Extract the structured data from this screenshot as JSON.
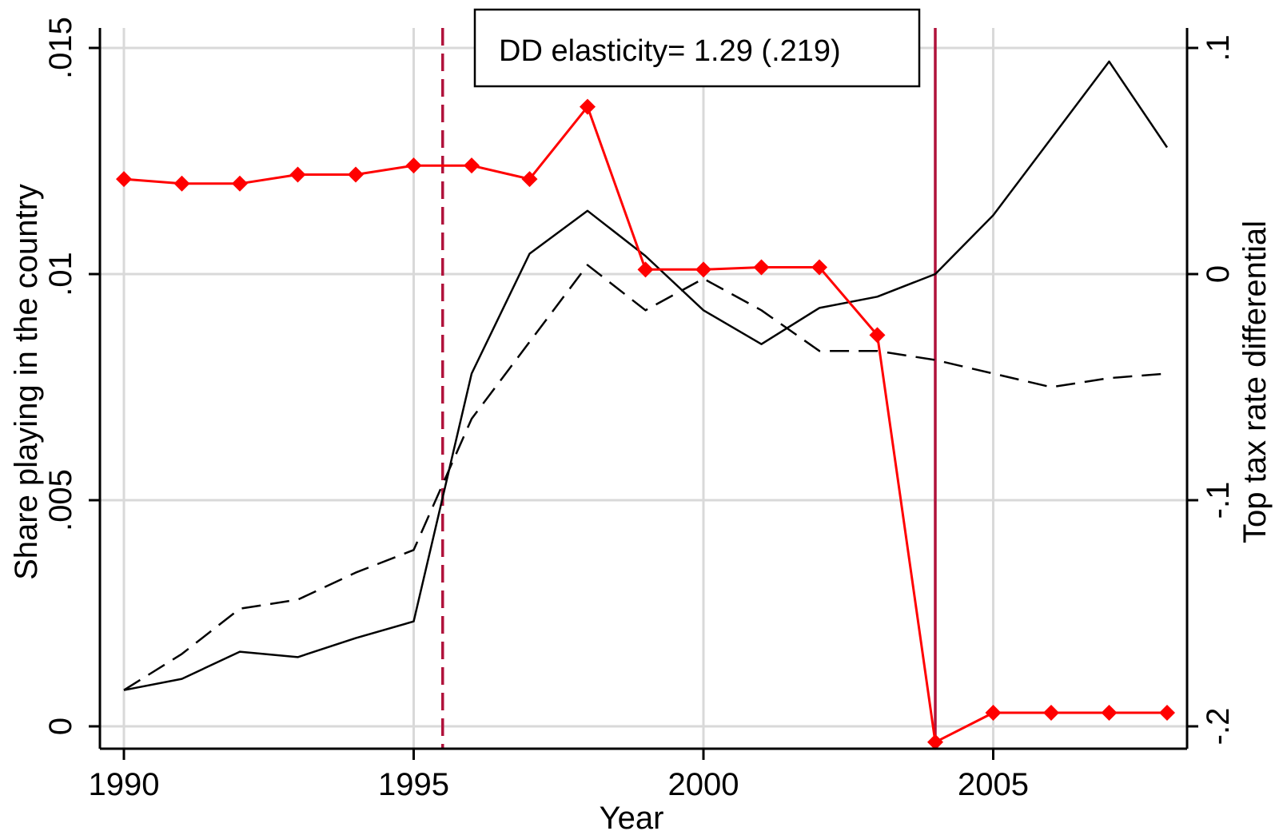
{
  "chart_data": {
    "type": "line",
    "title": "",
    "xlabel": "Year",
    "ylabel_left": "Share playing in the country",
    "ylabel_right": "Top tax rate differential",
    "xlim": [
      1990,
      2008
    ],
    "ylim_left": [
      0,
      0.015
    ],
    "ylim_right": [
      -0.2,
      0.1
    ],
    "grid": true,
    "legend": "none",
    "x_ticks": [
      1990,
      1995,
      2000,
      2005
    ],
    "x_tick_labels": [
      "1990",
      "1995",
      "2000",
      "2005"
    ],
    "y_left_ticks": [
      0,
      0.005,
      0.01,
      0.015
    ],
    "y_left_tick_labels": [
      "0",
      ".005",
      ".01",
      ".015"
    ],
    "y_right_ticks": [
      -0.2,
      -0.1,
      0,
      0.1
    ],
    "y_right_tick_labels": [
      "-.2",
      "-.1",
      "0",
      ".1"
    ],
    "annotation": "DD elasticity= 1.29 (.219)",
    "vlines": [
      {
        "x": 1995.5,
        "style": "dashed",
        "color": "#b0123b"
      },
      {
        "x": 2004,
        "style": "solid",
        "color": "#b0123b"
      }
    ],
    "x": [
      1990,
      1991,
      1992,
      1993,
      1994,
      1995,
      1996,
      1997,
      1998,
      1999,
      2000,
      2001,
      2002,
      2003,
      2004,
      2005,
      2006,
      2007,
      2008
    ],
    "series": [
      {
        "axis": "left",
        "style": "solid",
        "color": "#000000",
        "values": [
          0.0008,
          0.00105,
          0.00165,
          0.00153,
          0.00195,
          0.00232,
          0.0078,
          0.01045,
          0.0114,
          0.0104,
          0.0092,
          0.00845,
          0.00925,
          0.0095,
          0.01,
          0.0113,
          0.013,
          0.0147,
          0.0128
        ]
      },
      {
        "axis": "left",
        "style": "dashed",
        "color": "#000000",
        "values": [
          0.0008,
          0.0016,
          0.0026,
          0.0028,
          0.0034,
          0.0039,
          0.0068,
          0.0085,
          0.0102,
          0.0092,
          0.0099,
          0.0092,
          0.0083,
          0.0083,
          0.0081,
          0.0078,
          0.0075,
          0.0077,
          0.0078
        ]
      },
      {
        "axis": "right",
        "style": "solid-diamond",
        "color": "#ff0000",
        "values": [
          0.042,
          0.04,
          0.04,
          0.044,
          0.044,
          0.048,
          0.048,
          0.042,
          0.074,
          0.002,
          0.002,
          0.003,
          0.003,
          -0.027,
          -0.207,
          -0.194,
          -0.194,
          -0.194,
          -0.194
        ]
      }
    ]
  }
}
